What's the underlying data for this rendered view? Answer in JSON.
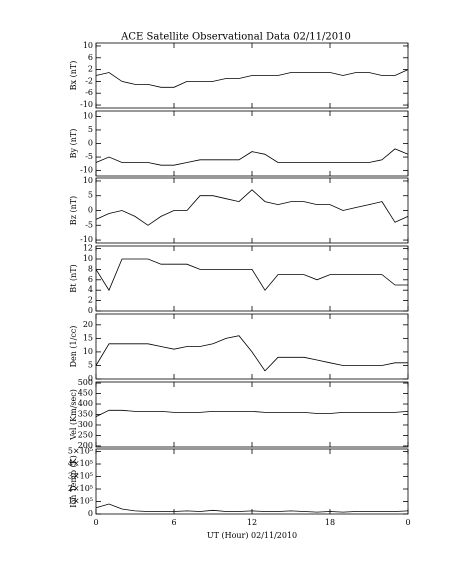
{
  "chart_data": [
    {
      "type": "line",
      "title": "ACE Satellite Observational Data   02/11/2010",
      "ylabel": "Bx (nT)",
      "x": [
        0,
        1,
        2,
        3,
        4,
        5,
        6,
        7,
        8,
        9,
        10,
        11,
        12,
        13,
        14,
        15,
        16,
        17,
        18,
        19,
        20,
        21,
        22,
        23,
        24
      ],
      "xlim": [
        0,
        24
      ],
      "ylim": [
        -11,
        11
      ],
      "yticks": [
        -10,
        -6,
        -2,
        2,
        6,
        10
      ],
      "color": "#000000",
      "values": [
        0,
        1,
        -2,
        -3,
        -3,
        -4,
        -4,
        -2,
        -2,
        -2,
        -1,
        -1,
        0,
        0,
        0,
        1,
        1,
        1,
        1,
        0,
        1,
        1,
        0,
        0,
        2
      ]
    },
    {
      "type": "line",
      "ylabel": "By (nT)",
      "x": [
        0,
        1,
        2,
        3,
        4,
        5,
        6,
        7,
        8,
        9,
        10,
        11,
        12,
        13,
        14,
        15,
        16,
        17,
        18,
        19,
        20,
        21,
        22,
        23,
        24
      ],
      "xlim": [
        0,
        24
      ],
      "ylim": [
        -12,
        12
      ],
      "yticks": [
        -10,
        -5,
        0,
        5,
        10
      ],
      "color": "#000000",
      "values": [
        -7,
        -5,
        -7,
        -7,
        -7,
        -8,
        -8,
        -7,
        -6,
        -6,
        -6,
        -6,
        -3,
        -4,
        -7,
        -7,
        -7,
        -7,
        -7,
        -7,
        -7,
        -7,
        -6,
        -2,
        -4
      ]
    },
    {
      "type": "line",
      "ylabel": "Bz (nT)",
      "x": [
        0,
        1,
        2,
        3,
        4,
        5,
        6,
        7,
        8,
        9,
        10,
        11,
        12,
        13,
        14,
        15,
        16,
        17,
        18,
        19,
        20,
        21,
        22,
        23,
        24
      ],
      "xlim": [
        0,
        24
      ],
      "ylim": [
        -11,
        11
      ],
      "yticks": [
        -10,
        -5,
        0,
        5,
        10
      ],
      "color": "#000000",
      "values": [
        -3,
        -1,
        0,
        -2,
        -5,
        -2,
        0,
        0,
        5,
        5,
        4,
        3,
        7,
        3,
        2,
        3,
        3,
        2,
        2,
        0,
        1,
        2,
        3,
        -4,
        -2
      ]
    },
    {
      "type": "line",
      "ylabel": "Bt (nT)",
      "x": [
        0,
        1,
        2,
        3,
        4,
        5,
        6,
        7,
        8,
        9,
        10,
        11,
        12,
        13,
        14,
        15,
        16,
        17,
        18,
        19,
        20,
        21,
        22,
        23,
        24
      ],
      "xlim": [
        0,
        24
      ],
      "ylim": [
        0,
        12.5
      ],
      "yticks": [
        0,
        2,
        4,
        6,
        8,
        10,
        12
      ],
      "color": "#000000",
      "values": [
        8,
        4,
        10,
        10,
        10,
        9,
        9,
        9,
        8,
        8,
        8,
        8,
        8,
        4,
        7,
        7,
        7,
        6,
        7,
        7,
        7,
        7,
        7,
        5,
        5
      ]
    },
    {
      "type": "line",
      "ylabel": "Den (1/cc)",
      "x": [
        0,
        1,
        2,
        3,
        4,
        5,
        6,
        7,
        8,
        9,
        10,
        11,
        12,
        13,
        14,
        15,
        16,
        17,
        18,
        19,
        20,
        21,
        22,
        23,
        24
      ],
      "xlim": [
        0,
        24
      ],
      "ylim": [
        0,
        24
      ],
      "yticks": [
        0,
        5,
        10,
        15,
        20
      ],
      "color": "#000000",
      "values": [
        5,
        13,
        13,
        13,
        13,
        12,
        11,
        12,
        12,
        13,
        15,
        16,
        10,
        3,
        8,
        8,
        8,
        7,
        6,
        5,
        5,
        5,
        5,
        6,
        6
      ]
    },
    {
      "type": "line",
      "ylabel": "Vel (Km/sec)",
      "x": [
        0,
        1,
        2,
        3,
        4,
        5,
        6,
        7,
        8,
        9,
        10,
        11,
        12,
        13,
        14,
        15,
        16,
        17,
        18,
        19,
        20,
        21,
        22,
        23,
        24
      ],
      "xlim": [
        0,
        24
      ],
      "ylim": [
        195,
        505
      ],
      "yticks": [
        200,
        250,
        300,
        350,
        400,
        450,
        500
      ],
      "color": "#000000",
      "values": [
        340,
        370,
        370,
        365,
        365,
        365,
        360,
        360,
        360,
        365,
        365,
        365,
        365,
        360,
        360,
        360,
        360,
        355,
        355,
        360,
        360,
        360,
        360,
        360,
        365
      ]
    },
    {
      "type": "line",
      "ylabel": "Ion Temp (K)",
      "xlabel": "UT (Hour)  02/11/2010",
      "x": [
        0,
        1,
        2,
        3,
        4,
        5,
        6,
        7,
        8,
        9,
        10,
        11,
        12,
        13,
        14,
        15,
        16,
        17,
        18,
        19,
        20,
        21,
        22,
        23,
        24
      ],
      "xlim": [
        0,
        24
      ],
      "xticks": [
        0,
        6,
        12,
        18,
        {
          "value": 24,
          "label": "0"
        }
      ],
      "ylim": [
        0,
        520000
      ],
      "yticks": [
        0,
        {
          "value": 100000,
          "label": "1×10⁵"
        },
        {
          "value": 200000,
          "label": "2×10⁵"
        },
        {
          "value": 300000,
          "label": "3×10⁵"
        },
        {
          "value": 400000,
          "label": "4×10⁵"
        },
        {
          "value": 500000,
          "label": "5×10⁵"
        }
      ],
      "color": "#000000",
      "values": [
        50000,
        80000,
        40000,
        25000,
        20000,
        20000,
        20000,
        25000,
        20000,
        30000,
        20000,
        20000,
        25000,
        20000,
        20000,
        25000,
        20000,
        15000,
        20000,
        15000,
        20000,
        20000,
        20000,
        20000,
        25000
      ]
    }
  ]
}
